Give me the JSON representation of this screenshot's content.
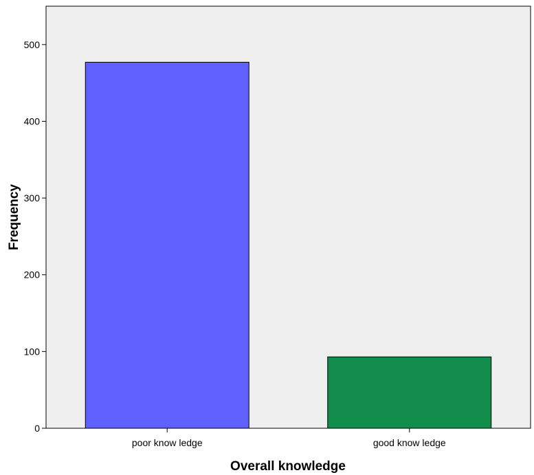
{
  "chart_data": {
    "type": "bar",
    "categories": [
      "poor know ledge",
      "good know ledge"
    ],
    "values": [
      477,
      93
    ],
    "colors": [
      "#6060ff",
      "#128c4a"
    ],
    "xlabel": "Overall knowledge",
    "ylabel": "Frequency",
    "ylim": [
      0,
      550
    ],
    "yticks": [
      0,
      100,
      200,
      300,
      400,
      500
    ],
    "grid": false,
    "background": "#efefef"
  }
}
